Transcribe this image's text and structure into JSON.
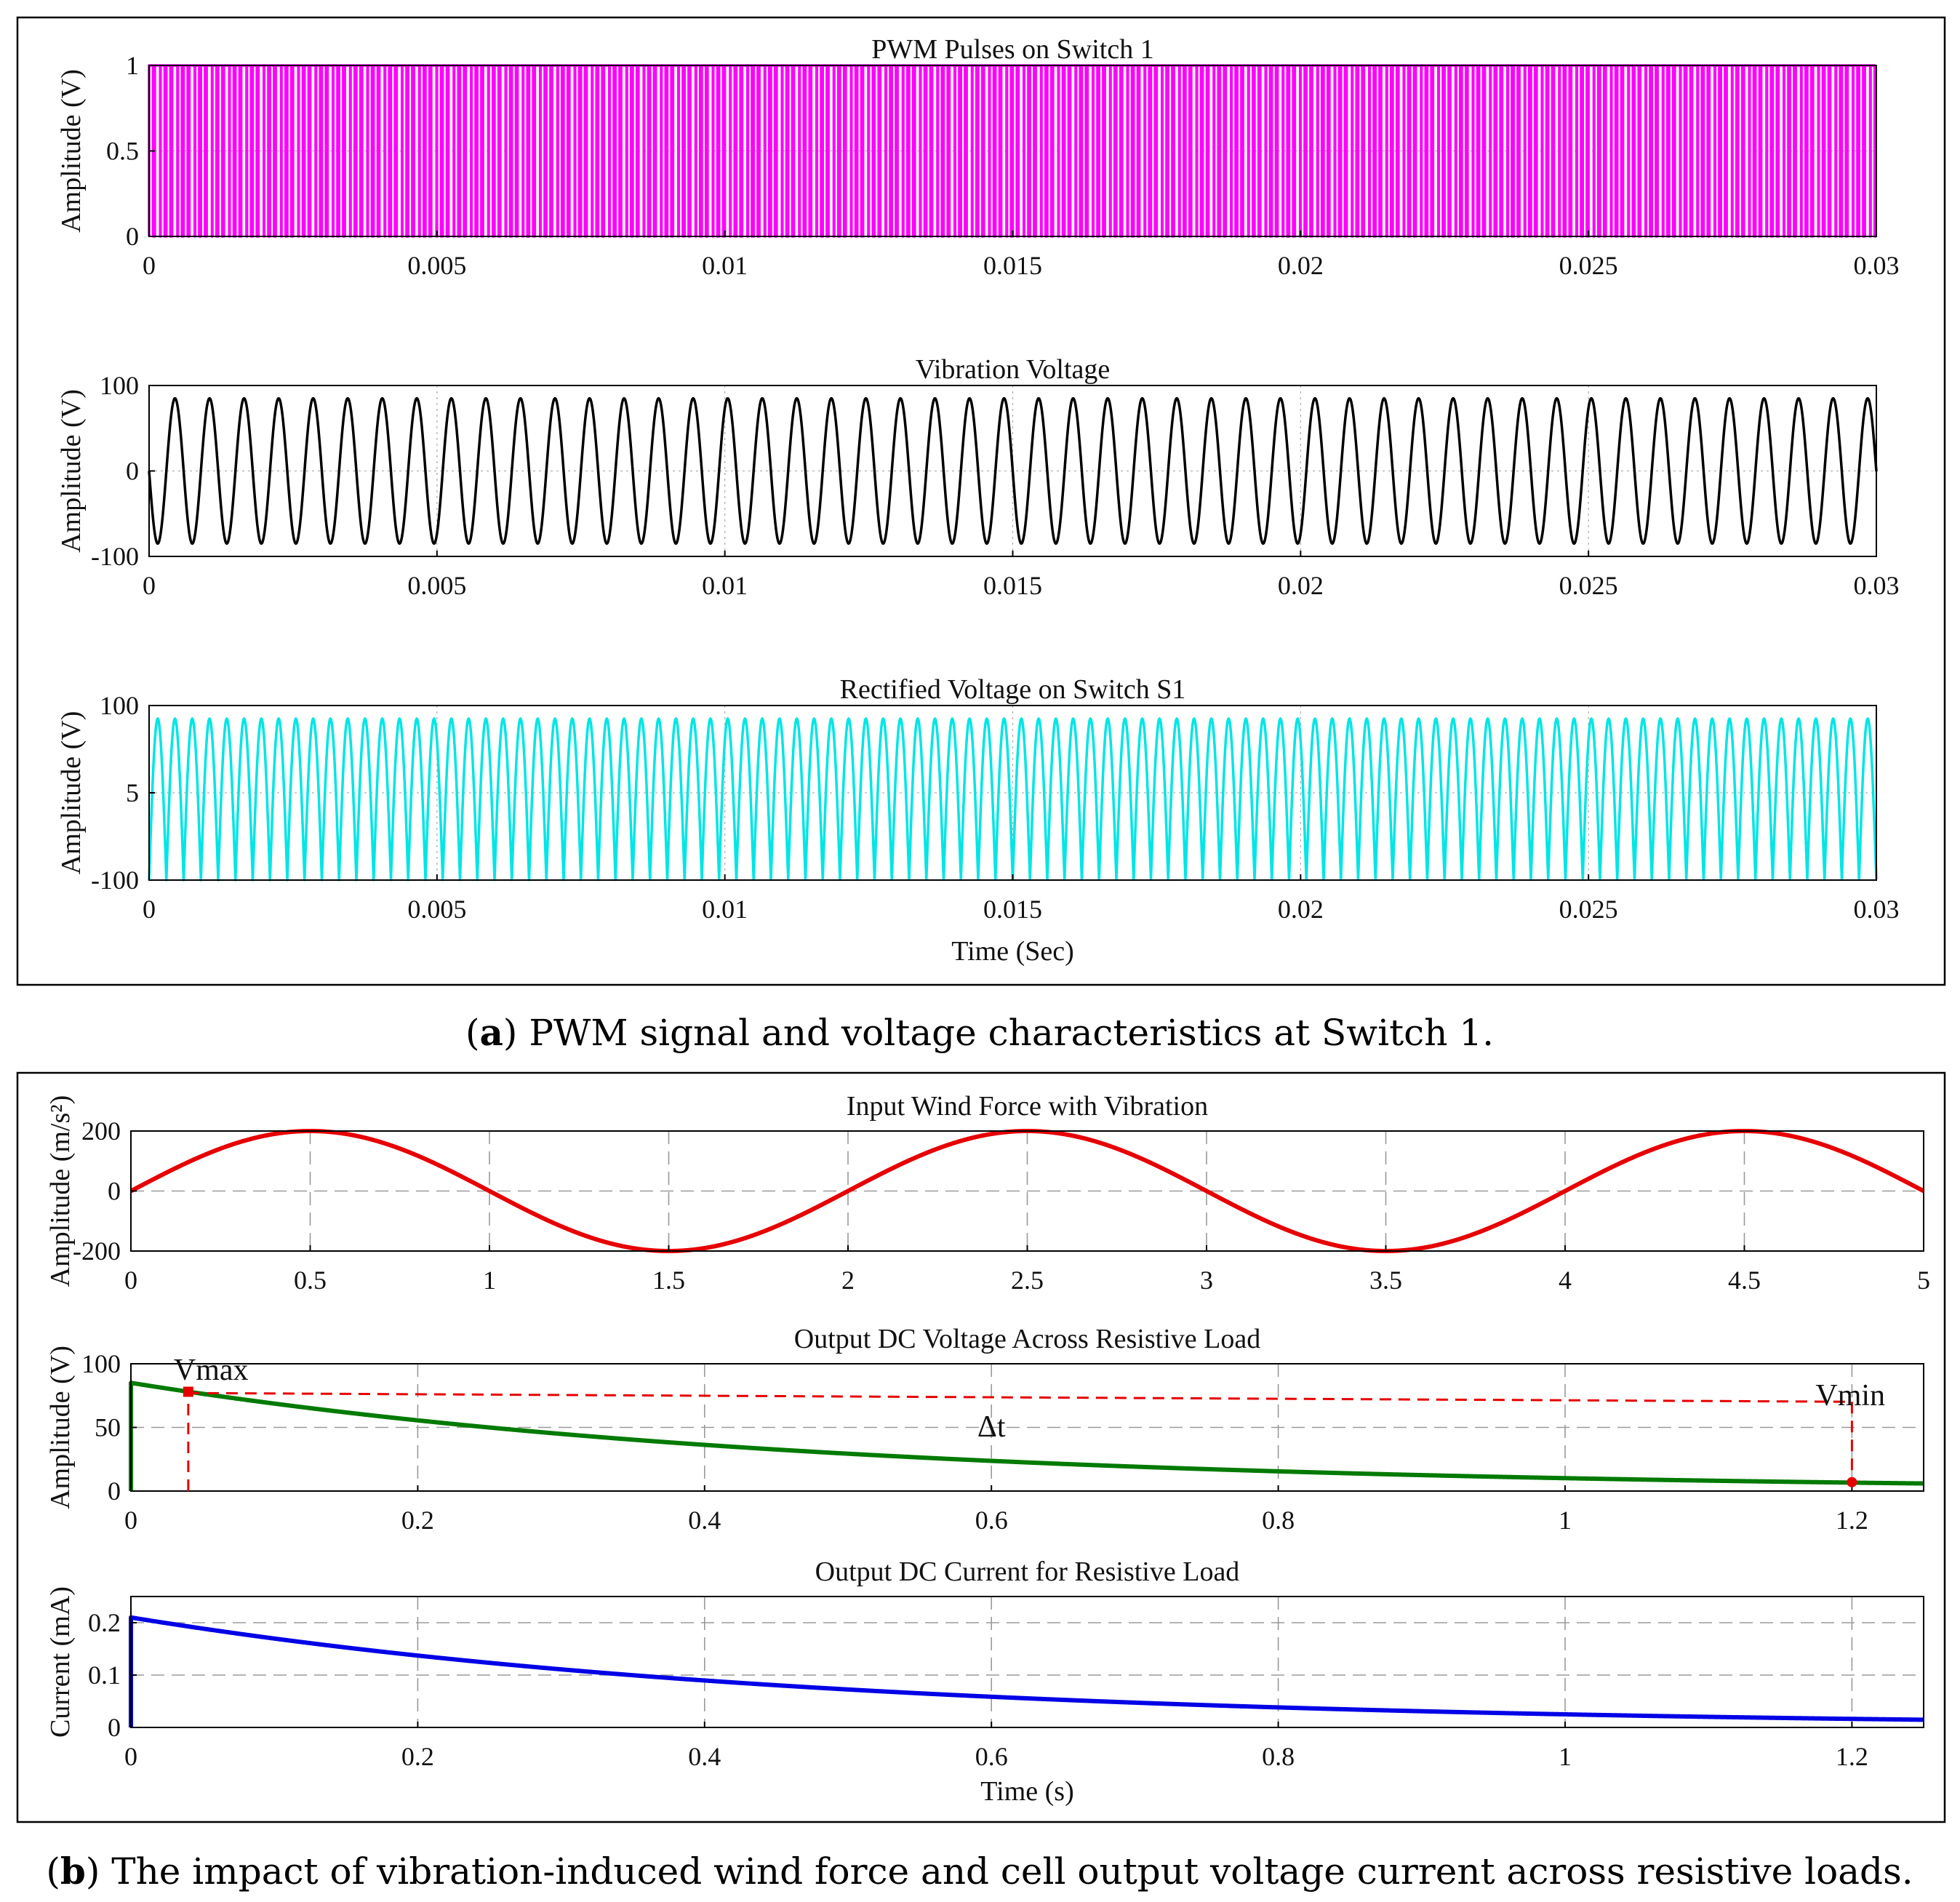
{
  "panel_a": {
    "caption_letter": "a",
    "caption_text": "PWM signal and voltage characteristics at Switch 1."
  },
  "panel_b": {
    "caption_letter": "b",
    "caption_text": "The impact of vibration-induced wind force and cell output voltage current across resistive loads."
  },
  "chart_data": [
    {
      "type": "line",
      "title": "PWM Pulses on Switch 1",
      "xlabel": "",
      "ylabel": "Amplitude (V)",
      "xlim": [
        0,
        0.03
      ],
      "ylim": [
        0,
        1
      ],
      "xticks": [
        "0",
        "0.005",
        "0.01",
        "0.015",
        "0.02",
        "0.025",
        "0.03"
      ],
      "yticks": [
        "0",
        "0.5",
        "1"
      ],
      "grid": true,
      "color": "#ff00ff",
      "series": [
        {
          "kind": "pwm",
          "low": 0,
          "high": 1,
          "x_start": 0,
          "x_end": 0.03,
          "carrier_periods": 300,
          "modulation_hz": 1666.7
        }
      ]
    },
    {
      "type": "line",
      "title": "Vibration Voltage",
      "xlabel": "",
      "ylabel": "Amplitude (V)",
      "xlim": [
        0,
        0.03
      ],
      "ylim": [
        -100,
        100
      ],
      "xticks": [
        "0",
        "0.005",
        "0.01",
        "0.015",
        "0.02",
        "0.025",
        "0.03"
      ],
      "yticks": [
        "-100",
        "0",
        "100"
      ],
      "grid": true,
      "color": "#000000",
      "series": [
        {
          "kind": "sine",
          "amplitude": 85,
          "frequency_hz": 1666.7,
          "phase": 3.1416,
          "x_start": 0,
          "x_end": 0.03
        }
      ]
    },
    {
      "type": "line",
      "title": "Rectified Voltage on Switch S1",
      "xlabel": "Time (Sec)",
      "ylabel": "Amplitude (V)",
      "xlim": [
        0,
        0.03
      ],
      "ylim": [
        -100,
        100
      ],
      "xticks": [
        "0",
        "0.005",
        "0.01",
        "0.015",
        "0.02",
        "0.025",
        "0.03"
      ],
      "yticks": [
        "-100",
        "5",
        "100"
      ],
      "grid": true,
      "color": "#00e5e5",
      "series": [
        {
          "kind": "abs_sine",
          "amplitude": 85,
          "frequency_hz": 1666.7,
          "baseline": -100,
          "x_start": 0,
          "x_end": 0.03
        }
      ]
    },
    {
      "type": "line",
      "title": "Input Wind Force with Vibration",
      "xlabel": "",
      "ylabel": "Amplitude (m/s²)",
      "xlim": [
        0,
        5
      ],
      "ylim": [
        -200,
        200
      ],
      "xticks": [
        "0",
        "0.5",
        "1",
        "1.5",
        "2",
        "2.5",
        "3",
        "3.5",
        "4",
        "4.5",
        "5"
      ],
      "yticks": [
        "-200",
        "0",
        "200"
      ],
      "grid": true,
      "color": "#e60000",
      "series": [
        {
          "kind": "sine",
          "amplitude": 200,
          "frequency_hz": 0.5,
          "phase": 0,
          "x_start": 0,
          "x_end": 5
        }
      ]
    },
    {
      "type": "line",
      "title": "Output DC Voltage Across Resistive Load",
      "xlabel": "",
      "ylabel": "Amplitude (V)",
      "xlim": [
        0,
        1.25
      ],
      "ylim": [
        0,
        100
      ],
      "xticks": [
        "0",
        "0.2",
        "0.4",
        "0.6",
        "0.8",
        "1",
        "1.2"
      ],
      "yticks": [
        "0",
        "50",
        "100"
      ],
      "grid": true,
      "color": "#007a00",
      "series": [
        {
          "kind": "exp_decay",
          "initial": 85,
          "tau": 0.47,
          "x_start": 0,
          "x_end": 1.25
        }
      ],
      "annotations": {
        "vmax_label": "Vmax",
        "vmin_label": "Vmin",
        "dt_label": "Δt",
        "vmax_point": [
          0.04,
          78
        ],
        "vmin_point": [
          1.2,
          7
        ],
        "dashed_level": 77
      }
    },
    {
      "type": "line",
      "title": "Output DC Current for Resistive Load",
      "xlabel": "Time (s)",
      "ylabel": "Current (mA)",
      "xlim": [
        0,
        1.25
      ],
      "ylim": [
        0,
        0.25
      ],
      "xticks": [
        "0",
        "0.2",
        "0.4",
        "0.6",
        "0.8",
        "1",
        "1.2"
      ],
      "yticks": [
        "0",
        "0.1",
        "0.2"
      ],
      "grid": true,
      "color": "#0000e6",
      "series": [
        {
          "kind": "exp_decay",
          "initial": 0.21,
          "tau": 0.47,
          "x_start": 0,
          "x_end": 1.25
        }
      ]
    }
  ]
}
